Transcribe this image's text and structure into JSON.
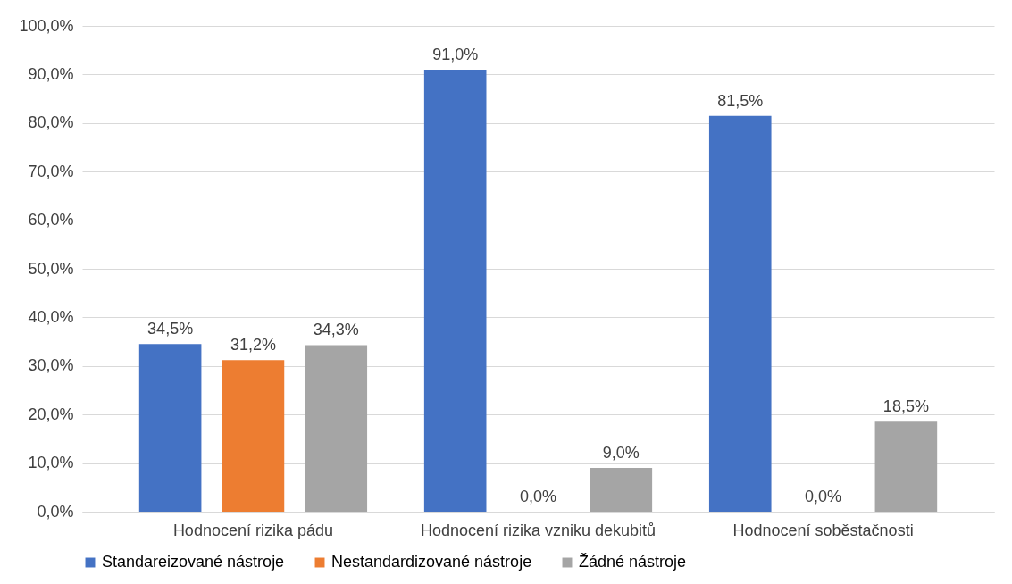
{
  "chart_data": {
    "type": "bar",
    "categories": [
      "Hodnocení rizika pádu",
      "Hodnocení rizika vzniku dekubitů",
      "Hodnocení soběstačnosti"
    ],
    "series": [
      {
        "name": "Standareizované nástroje",
        "color": "#4472c4",
        "values": [
          34.5,
          91.0,
          81.5
        ],
        "value_labels": [
          "34,5%",
          "91,0%",
          "81,5%"
        ]
      },
      {
        "name": "Nestandardizované nástroje",
        "color": "#ed7d31",
        "values": [
          31.2,
          0.0,
          0.0
        ],
        "value_labels": [
          "31,2%",
          "0,0%",
          "0,0%"
        ]
      },
      {
        "name": "Žádné nástroje",
        "color": "#a5a5a5",
        "values": [
          34.3,
          9.0,
          18.5
        ],
        "value_labels": [
          "34,3%",
          "9,0%",
          "18,5%"
        ]
      }
    ],
    "ylim": [
      0,
      100
    ],
    "yticks": [
      {
        "value": 0,
        "label": "0,0%"
      },
      {
        "value": 10,
        "label": "10,0%"
      },
      {
        "value": 20,
        "label": "20,0%"
      },
      {
        "value": 30,
        "label": "30,0%"
      },
      {
        "value": 40,
        "label": "40,0%"
      },
      {
        "value": 50,
        "label": "50,0%"
      },
      {
        "value": 60,
        "label": "60,0%"
      },
      {
        "value": 70,
        "label": "70,0%"
      },
      {
        "value": 80,
        "label": "80,0%"
      },
      {
        "value": 90,
        "label": "90,0%"
      },
      {
        "value": 100,
        "label": "100,0%"
      }
    ],
    "grid": "y",
    "legend": "bottom"
  }
}
